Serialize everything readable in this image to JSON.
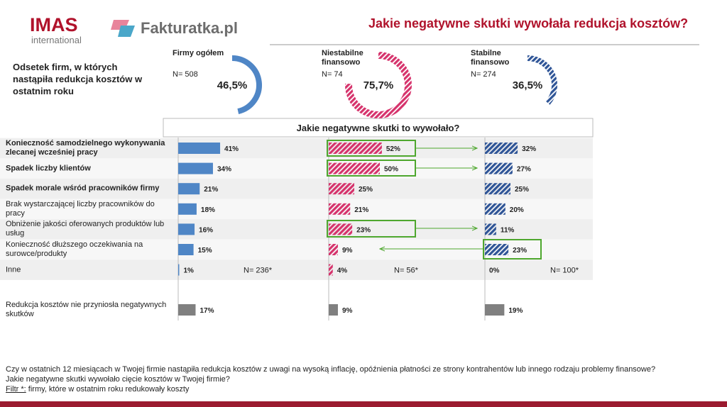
{
  "header": {
    "brand": "IMAS",
    "brand_sub": "international",
    "partner": "Fakturatka.pl",
    "title": "Jakie negatywne skutki wywołała redukcja kosztów?"
  },
  "intro": "Odsetek firm, w których nastąpiła redukcja kosztów w ostatnim roku",
  "chart_data": [
    {
      "type": "donut",
      "title": "Firmy ogółem",
      "subtitle": "N= 508",
      "values": [
        46.5
      ],
      "value_labels": [
        "46,5%"
      ],
      "color": "#4f86c6",
      "hatch": false
    },
    {
      "type": "donut",
      "title": "Niestabilne finansowo",
      "subtitle": "N= 74",
      "values": [
        75.7
      ],
      "value_labels": [
        "75,7%"
      ],
      "color": "#d6336c",
      "hatch": true
    },
    {
      "type": "donut",
      "title": "Stabilne finansowo",
      "subtitle": "N= 274",
      "values": [
        36.5
      ],
      "value_labels": [
        "36,5%"
      ],
      "color": "#2f5597",
      "hatch": true
    },
    {
      "type": "bar",
      "orientation": "horizontal",
      "title": "Jakie negatywne skutki to wywołało?",
      "categories": [
        "Konieczność samodzielnego wykonywania zlecanej wcześniej pracy",
        "Spadek liczby klientów",
        "Spadek morale wśród pracowników firmy",
        "Brak wystarczającej liczby pracowników do pracy",
        "Obniżenie jakości oferowanych produktów lub usług",
        "Konieczność dłuższego oczekiwania na surowce/produkty",
        "Inne",
        "Redukcja kosztów nie przyniosła negatywnych skutków"
      ],
      "xlim": [
        0,
        100
      ],
      "separated_last_color": "#808080",
      "series": [
        {
          "values": [
            41,
            34,
            21,
            18,
            16,
            15,
            1,
            17
          ],
          "value_labels": [
            "41%",
            "34%",
            "21%",
            "18%",
            "16%",
            "15%",
            "1%",
            "17%"
          ],
          "color": "#4f86c6",
          "hatch": false,
          "note": "N= 236*"
        },
        {
          "values": [
            52,
            50,
            25,
            21,
            23,
            9,
            4,
            9
          ],
          "value_labels": [
            "52%",
            "50%",
            "25%",
            "21%",
            "23%",
            "9%",
            "4%",
            "9%"
          ],
          "color": "#d6336c",
          "hatch": true,
          "note": "N= 56*"
        },
        {
          "values": [
            32,
            27,
            25,
            20,
            11,
            23,
            0,
            19
          ],
          "value_labels": [
            "32%",
            "27%",
            "25%",
            "20%",
            "11%",
            "23%",
            "0%",
            "19%"
          ],
          "color": "#2f5597",
          "hatch": true,
          "note": "N= 100*"
        }
      ]
    }
  ],
  "footer": {
    "question": "Czy w ostatnich 12 miesiącach w Twojej firmie nastąpiła redukcja kosztów z uwagi na wysoką inflację, opóźnienia płatności ze strony kontrahentów lub innego rodzaju problemy finansowe? Jakie negatywne skutki wywołało cięcie kosztów w Twojej firmie?",
    "filter_label": "Filtr *:",
    "filter_text": "firmy, które w ostatnim roku redukowały koszty"
  }
}
